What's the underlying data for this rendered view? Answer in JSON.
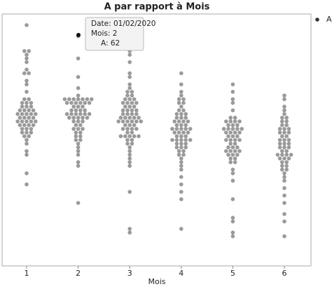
{
  "chart_data": {
    "type": "swarm",
    "title": "A par rapport à Mois",
    "x_label": "Mois",
    "categories": [
      "1",
      "2",
      "3",
      "4",
      "5",
      "6"
    ],
    "ylim": [
      0,
      68
    ],
    "series": [
      {
        "name": "A",
        "color": "#9a9a9a",
        "values": [
          [
            65,
            58,
            58,
            57,
            56,
            55,
            53,
            52,
            52,
            50,
            49,
            47,
            45,
            45,
            44,
            44,
            44,
            43,
            43,
            43,
            42,
            42,
            42,
            42,
            41,
            41,
            41,
            41,
            41,
            40,
            40,
            40,
            40,
            39,
            39,
            39,
            39,
            39,
            38,
            38,
            38,
            38,
            37,
            37,
            37,
            36,
            36,
            36,
            35,
            35,
            34,
            33,
            31,
            30,
            25,
            22
          ],
          [
            62,
            56,
            51,
            48,
            46,
            45,
            45,
            45,
            45,
            45,
            45,
            45,
            44,
            44,
            44,
            44,
            44,
            44,
            43,
            43,
            43,
            42,
            42,
            42,
            42,
            41,
            41,
            41,
            41,
            41,
            41,
            40,
            40,
            40,
            40,
            40,
            39,
            39,
            39,
            38,
            38,
            37,
            37,
            37,
            36,
            36,
            35,
            35,
            34,
            34,
            33,
            32,
            31,
            30,
            28,
            27,
            17
          ],
          [
            62,
            58,
            57,
            55,
            52,
            51,
            49,
            48,
            47,
            47,
            46,
            46,
            45,
            45,
            45,
            44,
            44,
            44,
            44,
            43,
            43,
            43,
            42,
            42,
            42,
            42,
            41,
            41,
            41,
            41,
            40,
            40,
            40,
            40,
            40,
            39,
            39,
            39,
            39,
            39,
            39,
            38,
            38,
            38,
            37,
            37,
            37,
            37,
            36,
            36,
            35,
            35,
            35,
            35,
            35,
            34,
            34,
            33,
            33,
            32,
            31,
            30,
            29,
            28,
            27,
            20,
            10,
            9
          ],
          [
            52,
            49,
            47,
            46,
            45,
            45,
            44,
            44,
            43,
            42,
            42,
            41,
            41,
            41,
            40,
            40,
            40,
            39,
            39,
            39,
            39,
            38,
            38,
            38,
            37,
            37,
            37,
            37,
            37,
            36,
            36,
            36,
            36,
            35,
            35,
            35,
            34,
            34,
            34,
            34,
            34,
            33,
            33,
            33,
            32,
            32,
            32,
            31,
            31,
            30,
            30,
            29,
            28,
            27,
            26,
            24,
            22,
            20,
            18,
            10
          ],
          [
            49,
            47,
            45,
            44,
            42,
            40,
            40,
            39,
            39,
            39,
            39,
            38,
            38,
            38,
            37,
            37,
            37,
            37,
            37,
            36,
            36,
            36,
            36,
            35,
            35,
            35,
            34,
            34,
            34,
            34,
            33,
            33,
            32,
            32,
            32,
            31,
            31,
            31,
            31,
            30,
            30,
            30,
            29,
            29,
            28,
            28,
            26,
            25,
            23,
            18,
            13,
            12,
            9,
            8
          ],
          [
            46,
            45,
            43,
            42,
            41,
            40,
            40,
            39,
            39,
            38,
            38,
            37,
            37,
            37,
            36,
            36,
            36,
            35,
            35,
            34,
            34,
            34,
            33,
            33,
            33,
            32,
            32,
            32,
            31,
            31,
            30,
            30,
            30,
            30,
            29,
            29,
            29,
            28,
            28,
            27,
            27,
            26,
            26,
            25,
            24,
            23,
            21,
            19,
            17,
            14,
            12,
            8
          ]
        ]
      }
    ],
    "tooltip": [
      "Date: 01/02/2020",
      "Mois: 2",
      "A: 62"
    ]
  }
}
